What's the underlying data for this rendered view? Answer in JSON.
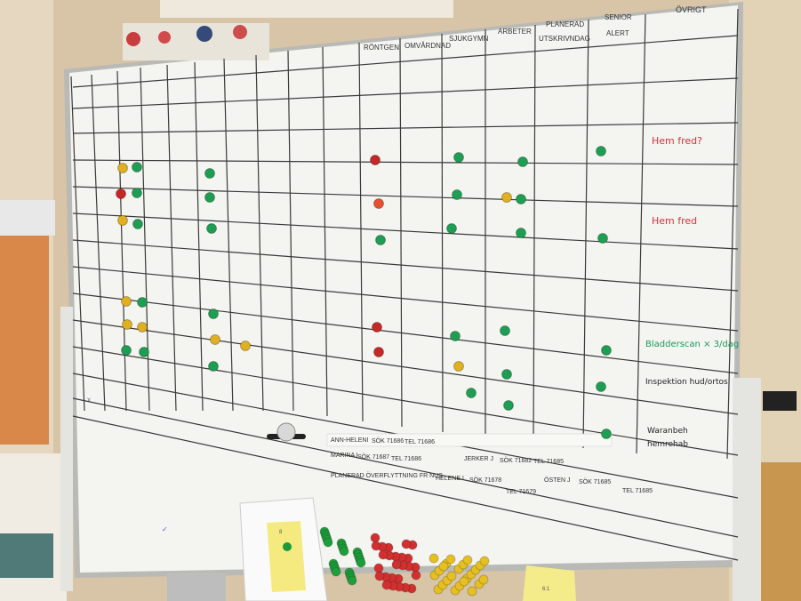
{
  "board": {
    "column_headers": [
      "RÖNTGEN",
      "OMVÅRDNAD",
      "SJUKGYMN",
      "ARBETER",
      "PLANERAD",
      "UTSKRIVNDAG",
      "SENIOR",
      "ALERT",
      "ÖVRIGT"
    ],
    "notes": {
      "row3": "Hem fred?",
      "row5": "Hem fred",
      "row10": "Bladderscan × 3/dag",
      "row11": "Inspektion hud/ortos",
      "row12a": "Waranbeh",
      "row12b": "hemrehab"
    },
    "contacts": {
      "row1": [
        "ANN-HELENI",
        "SÖK 71686",
        "TEL 71686",
        "JERKER J",
        "SÖK 71682",
        "TEL 71685",
        "ÖSTEN J",
        "SÖK 71685",
        "TEL 71685"
      ],
      "row2": [
        "MARINA I",
        "SÖK 71687",
        "TEL 71686",
        "HELENE L",
        "SÖK 71678",
        "TEL 71679"
      ],
      "transfer": "PLANERAD ÖVERFLYTTNING FR NUS"
    },
    "sticky_number": "8",
    "sticky_bottom": "6:1"
  }
}
